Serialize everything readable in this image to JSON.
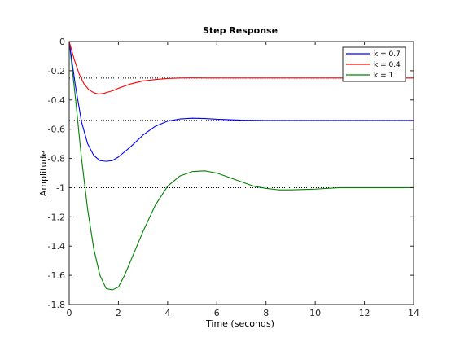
{
  "chart_data": {
    "type": "line",
    "title": "Step Response",
    "xlabel": "Time (seconds)",
    "ylabel": "Amplitude",
    "xlim": [
      0,
      14
    ],
    "ylim": [
      -1.8,
      0
    ],
    "xticks": [
      0,
      2,
      4,
      6,
      8,
      10,
      12,
      14
    ],
    "yticks": [
      0,
      -0.2,
      -0.4,
      -0.6,
      -0.8,
      -1,
      -1.2,
      -1.4,
      -1.6,
      -1.8
    ],
    "xtick_labels": [
      "0",
      "2",
      "4",
      "6",
      "8",
      "10",
      "12",
      "14"
    ],
    "ytick_labels": [
      "0",
      "-0.2",
      "-0.4",
      "-0.6",
      "-0.8",
      "-1",
      "-1.2",
      "-1.4",
      "-1.6",
      "-1.8"
    ],
    "grid": false,
    "legend_position": "top-right",
    "series": [
      {
        "name": "k = 0.7",
        "color": "#0000ff",
        "steady_state": -0.54,
        "x": [
          0,
          0.25,
          0.5,
          0.75,
          1.0,
          1.25,
          1.5,
          1.75,
          2.0,
          2.5,
          3.0,
          3.5,
          4.0,
          4.5,
          5.0,
          5.5,
          6.0,
          7.0,
          8.0,
          10.0,
          12.0,
          14.0
        ],
        "y": [
          0,
          -0.3,
          -0.55,
          -0.7,
          -0.78,
          -0.815,
          -0.82,
          -0.815,
          -0.79,
          -0.72,
          -0.64,
          -0.58,
          -0.545,
          -0.53,
          -0.525,
          -0.527,
          -0.532,
          -0.538,
          -0.54,
          -0.54,
          -0.54,
          -0.54
        ]
      },
      {
        "name": "k = 0.4",
        "color": "#ff0000",
        "steady_state": -0.25,
        "x": [
          0,
          0.2,
          0.4,
          0.6,
          0.8,
          1.0,
          1.2,
          1.4,
          1.6,
          1.8,
          2.0,
          2.5,
          3.0,
          3.5,
          4.0,
          4.5,
          5.0,
          6.0,
          8.0,
          10.0,
          14.0
        ],
        "y": [
          0,
          -0.12,
          -0.22,
          -0.29,
          -0.33,
          -0.35,
          -0.36,
          -0.355,
          -0.345,
          -0.335,
          -0.32,
          -0.29,
          -0.27,
          -0.26,
          -0.253,
          -0.25,
          -0.249,
          -0.25,
          -0.25,
          -0.25,
          -0.25
        ]
      },
      {
        "name": "k = 1",
        "color": "#008000",
        "steady_state": -1.0,
        "x": [
          0,
          0.25,
          0.5,
          0.75,
          1.0,
          1.25,
          1.5,
          1.75,
          2.0,
          2.25,
          2.5,
          3.0,
          3.5,
          4.0,
          4.5,
          5.0,
          5.5,
          6.0,
          6.5,
          7.0,
          7.5,
          8.0,
          8.5,
          9.0,
          10.0,
          11.0,
          12.0,
          14.0
        ],
        "y": [
          0,
          -0.38,
          -0.8,
          -1.15,
          -1.42,
          -1.6,
          -1.69,
          -1.7,
          -1.68,
          -1.6,
          -1.5,
          -1.3,
          -1.12,
          -0.99,
          -0.92,
          -0.89,
          -0.885,
          -0.9,
          -0.93,
          -0.96,
          -0.99,
          -1.005,
          -1.015,
          -1.015,
          -1.01,
          -1.0,
          -1.0,
          -1.0
        ]
      }
    ]
  }
}
